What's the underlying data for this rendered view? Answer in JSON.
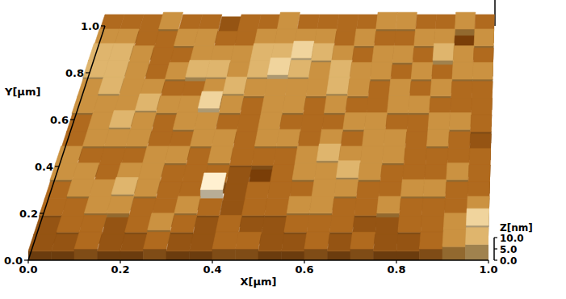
{
  "chart_data": {
    "type": "surface",
    "x_label": "X[μm]",
    "y_label": "Y[μm]",
    "z_label": "Z[nm]",
    "xlim": [
      0,
      1
    ],
    "ylim": [
      0,
      1
    ],
    "zlim": [
      0,
      10
    ],
    "xticks": [
      {
        "value": 0,
        "label": "0.0"
      },
      {
        "value": 0.2,
        "label": "0.2"
      },
      {
        "value": 0.4,
        "label": "0.4"
      },
      {
        "value": 0.6,
        "label": "0.6"
      },
      {
        "value": 0.8,
        "label": "0.8"
      },
      {
        "value": 1,
        "label": "1.0"
      }
    ],
    "yticks": [
      {
        "value": 0,
        "label": "0.0"
      },
      {
        "value": 0.2,
        "label": "0.2"
      },
      {
        "value": 0.4,
        "label": "0.4"
      },
      {
        "value": 0.6,
        "label": "0.6"
      },
      {
        "value": 0.8,
        "label": "0.8"
      },
      {
        "value": 1,
        "label": "1.0"
      }
    ],
    "zticks": [
      {
        "value": 0,
        "label": "0.0"
      },
      {
        "value": 5,
        "label": "5.0"
      },
      {
        "value": 10,
        "label": "10.0"
      }
    ],
    "z": [
      [
        4,
        4,
        5,
        4,
        4,
        5,
        4,
        4,
        5,
        5,
        4,
        4,
        5,
        4,
        5,
        4,
        4,
        5,
        6,
        7
      ],
      [
        4,
        5,
        5,
        4,
        5,
        6,
        5,
        4,
        5,
        4,
        4,
        5,
        5,
        5,
        4,
        4,
        5,
        5,
        6,
        8
      ],
      [
        5,
        5,
        6,
        6,
        5,
        5,
        6,
        5,
        4,
        5,
        5,
        6,
        6,
        5,
        5,
        6,
        5,
        5,
        5,
        6
      ],
      [
        5,
        6,
        6,
        7,
        6,
        5,
        5,
        9,
        4,
        5,
        5,
        5,
        6,
        6,
        5,
        5,
        6,
        6,
        5,
        5
      ],
      [
        6,
        6,
        5,
        6,
        6,
        5,
        5,
        5,
        4,
        3,
        5,
        6,
        6,
        7,
        6,
        5,
        5,
        5,
        6,
        5
      ],
      [
        6,
        5,
        5,
        5,
        6,
        6,
        5,
        6,
        5,
        5,
        5,
        6,
        7,
        6,
        6,
        6,
        5,
        5,
        5,
        5
      ],
      [
        5,
        6,
        6,
        6,
        5,
        5,
        6,
        6,
        5,
        6,
        6,
        5,
        6,
        5,
        6,
        6,
        5,
        6,
        5,
        4
      ],
      [
        5,
        6,
        7,
        6,
        5,
        6,
        6,
        5,
        5,
        6,
        5,
        5,
        5,
        6,
        6,
        5,
        5,
        6,
        6,
        5
      ],
      [
        6,
        6,
        6,
        7,
        6,
        6,
        8,
        6,
        5,
        6,
        6,
        5,
        6,
        5,
        5,
        6,
        6,
        5,
        5,
        5
      ],
      [
        6,
        7,
        6,
        6,
        5,
        5,
        6,
        7,
        6,
        6,
        6,
        6,
        7,
        6,
        5,
        6,
        5,
        6,
        5,
        5
      ],
      [
        7,
        7,
        6,
        5,
        6,
        7,
        7,
        6,
        7,
        8,
        7,
        6,
        7,
        6,
        6,
        5,
        6,
        5,
        6,
        6
      ],
      [
        7,
        7,
        6,
        5,
        5,
        6,
        6,
        6,
        7,
        7,
        8,
        7,
        6,
        5,
        6,
        6,
        5,
        7,
        6,
        5
      ],
      [
        6,
        6,
        5,
        5,
        6,
        6,
        5,
        5,
        6,
        6,
        6,
        6,
        5,
        6,
        5,
        5,
        6,
        6,
        3,
        6
      ],
      [
        5,
        5,
        5,
        6,
        5,
        5,
        4,
        5,
        5,
        6,
        5,
        5,
        5,
        5,
        6,
        6,
        5,
        5,
        6,
        5
      ]
    ]
  }
}
